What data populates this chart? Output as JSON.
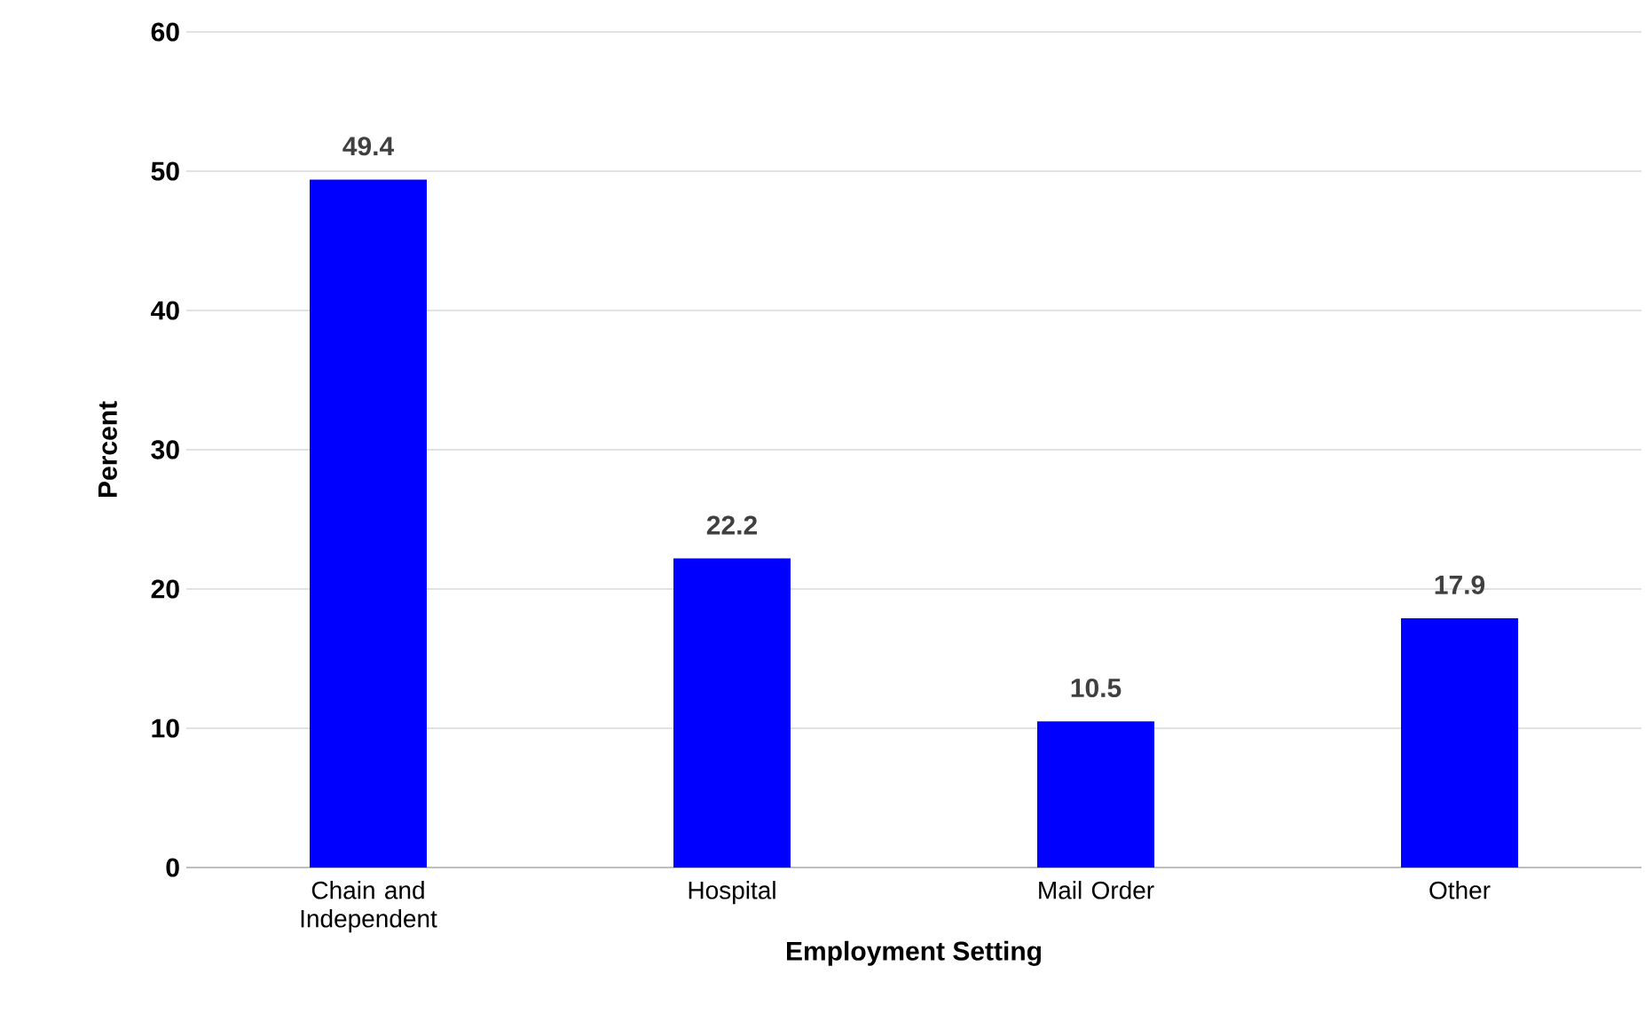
{
  "chart_data": {
    "type": "bar",
    "xlabel": "Employment Setting",
    "ylabel": "Percent",
    "categories": [
      "Chain and Independent",
      "Hospital",
      "Mail Order",
      "Other"
    ],
    "values": [
      49.4,
      22.2,
      10.5,
      17.9
    ],
    "color": "#0000ff",
    "ylim": [
      0,
      60
    ],
    "yticks": [
      0,
      10,
      20,
      30,
      40,
      50,
      60
    ],
    "grid": "y",
    "data_labels": true
  }
}
